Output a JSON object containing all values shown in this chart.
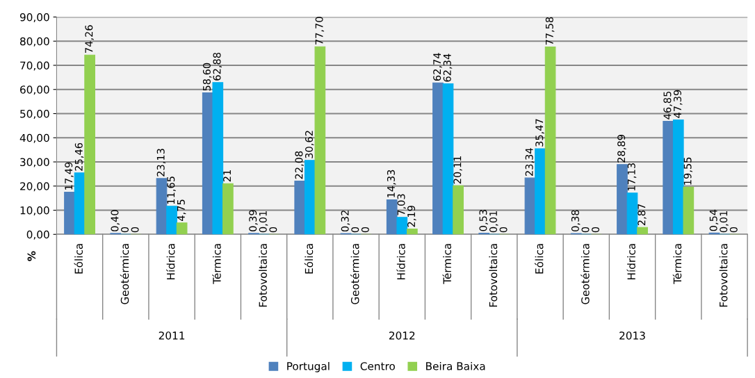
{
  "chart_data": {
    "type": "bar",
    "ylabel": "%",
    "categories": [
      "Eólica",
      "Geotérmica",
      "Hídrica",
      "Térmica",
      "Fotovoltaica",
      "Eólica",
      "Geotérmica",
      "Hídrica",
      "Térmica",
      "Fotovoltaica",
      "Eólica",
      "Geotérmica",
      "Hídrica",
      "Térmica",
      "Fotovoltaica"
    ],
    "series": [
      {
        "name": "Portugal",
        "color": "#4f81bd",
        "values": [
          17.49,
          0.4,
          23.13,
          58.6,
          0.39,
          22.08,
          0.32,
          14.33,
          62.74,
          0.53,
          23.34,
          0.38,
          28.89,
          46.85,
          0.54
        ],
        "value_labels": [
          "17,49",
          "0,40",
          "23,13",
          "58,60",
          "0,39",
          "22,08",
          "0,32",
          "14,33",
          "62,74",
          "0,53",
          "23,34",
          "0,38",
          "28,89",
          "46,85",
          "0,54"
        ]
      },
      {
        "name": "Centro",
        "color": "#00b0f0",
        "values": [
          25.46,
          0,
          11.65,
          62.88,
          0.01,
          30.62,
          0,
          7.03,
          62.34,
          0.01,
          35.47,
          0,
          17.13,
          47.39,
          0.01
        ],
        "value_labels": [
          "25,46",
          "0",
          "11,65",
          "62,88",
          "0,01",
          "30,62",
          "0",
          "7,03",
          "62,34",
          "0,01",
          "35,47",
          "0",
          "17,13",
          "47,39",
          "0,01"
        ]
      },
      {
        "name": "Beira Baixa",
        "color": "#92d050",
        "values": [
          74.26,
          0,
          4.75,
          21,
          0,
          77.7,
          0,
          2.19,
          20.11,
          0,
          77.58,
          0,
          2.87,
          19.55,
          0
        ],
        "value_labels": [
          "74,26",
          "0",
          "4,75",
          "21",
          "0",
          "77,70",
          "0",
          "2,19",
          "20,11",
          "0",
          "77,58",
          "0",
          "2,87",
          "19,55",
          "0"
        ]
      }
    ],
    "annotations": [
      "2011",
      "2012",
      "2013"
    ],
    "ylim": [
      0,
      90
    ],
    "yticks": [
      {
        "value": 0,
        "label": "0,00"
      },
      {
        "value": 10,
        "label": "10,00"
      },
      {
        "value": 20,
        "label": "20,00"
      },
      {
        "value": 30,
        "label": "30,00"
      },
      {
        "value": 40,
        "label": "40,00"
      },
      {
        "value": 50,
        "label": "50,00"
      },
      {
        "value": 60,
        "label": "60,00"
      },
      {
        "value": 70,
        "label": "70,00"
      },
      {
        "value": 80,
        "label": "80,00"
      },
      {
        "value": 90,
        "label": "90,00"
      }
    ],
    "grid": "y",
    "legend": "bottom"
  }
}
